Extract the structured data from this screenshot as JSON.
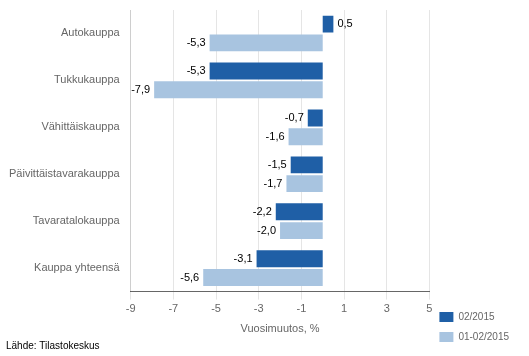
{
  "chart_data": {
    "type": "bar",
    "orientation": "horizontal",
    "categories": [
      "Kauppa yhteensä",
      "Tavaratalokauppa",
      "Päivittäistavarakauppa",
      "Vähittäiskauppa",
      "Tukkukauppa",
      "Autokauppa"
    ],
    "series": [
      {
        "name": "02/2015",
        "color": "#1F5FA6",
        "values": [
          -3.1,
          -2.2,
          -1.5,
          -0.7,
          -5.3,
          0.5
        ],
        "value_labels": [
          "-3,1",
          "-2,2",
          "-1,5",
          "-0,7",
          "-5,3",
          "0,5"
        ]
      },
      {
        "name": "01-02/2015",
        "color": "#A8C4E0",
        "values": [
          -5.6,
          -2.0,
          -1.7,
          -1.6,
          -7.9,
          -5.3
        ],
        "value_labels": [
          "-5,6",
          "-2,0",
          "-1,7",
          "-1,6",
          "-7,9",
          "-5,3"
        ]
      }
    ],
    "xlim": [
      -9,
      5
    ],
    "xticks": [
      -9,
      -7,
      -5,
      -3,
      -1,
      1,
      3,
      5
    ],
    "xlabel": "Vuosimuutos, %",
    "footnote": "Lähde: Tilastokeskus",
    "grid": true,
    "legend": "lower right",
    "data_labels": true
  }
}
